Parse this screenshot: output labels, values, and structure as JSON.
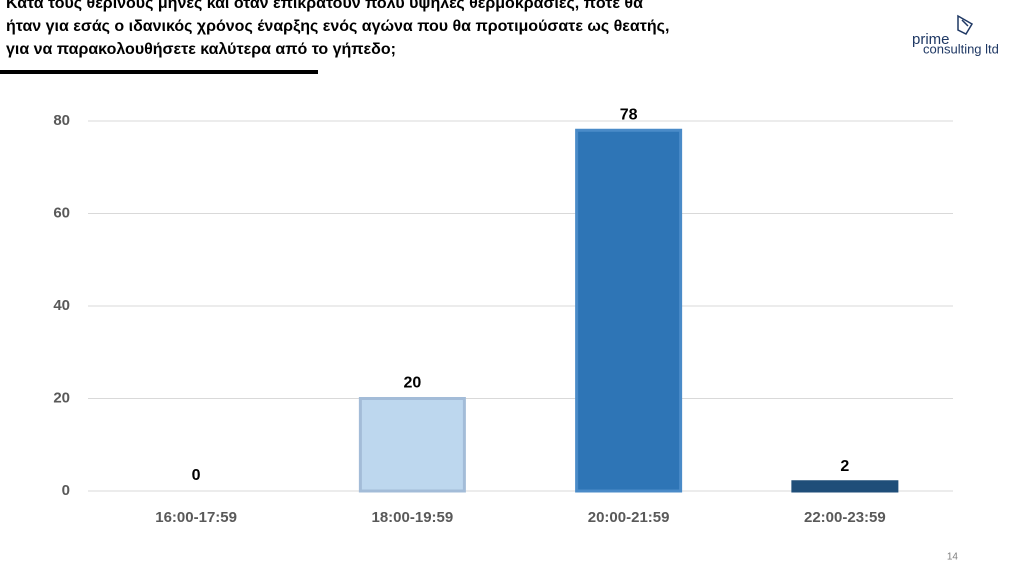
{
  "chart_data": {
    "type": "bar",
    "title": "Κατά τους θερινούς μήνες και όταν επικρατούν πολύ υψηλές θερμοκρασίες, πότε θα\nήταν για εσάς ο ιδανικός χρόνος έναρξης ενός αγώνα που θα προτιμούσατε ως θεατής,\nγια να παρακολουθήσετε καλύτερα από το γήπεδο;",
    "categories": [
      "16:00-17:59",
      "18:00-19:59",
      "20:00-21:59",
      "22:00-23:59"
    ],
    "values": [
      0,
      20,
      78,
      2
    ],
    "colors": [
      "#bdd7ee",
      "#bdd7ee",
      "#2e75b6",
      "#1f4e79"
    ],
    "edgecolors": [
      "#a3bcd8",
      "#a3bcd8",
      "#4a8bc8",
      "#1f4e79"
    ],
    "ylim": [
      0,
      80
    ],
    "yticks": [
      0,
      20,
      40,
      60,
      80
    ],
    "grid": true
  },
  "logo": {
    "name": "prime",
    "subtitle": "consulting ltd"
  },
  "page_number": "14"
}
